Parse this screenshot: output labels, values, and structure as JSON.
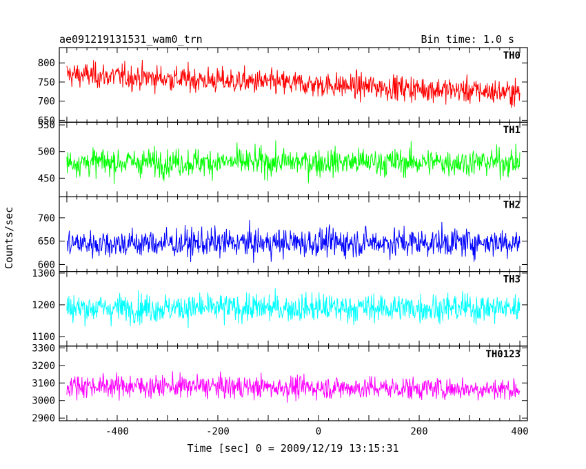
{
  "figure": {
    "title_left": "ae091219131531_wam0_trn",
    "title_right": "Bin time: 1.0 s",
    "ylabel": "Counts/sec",
    "xlabel": "Time [sec] 0 = 2009/12/19 13:15:31"
  },
  "chart_data": {
    "type": "line",
    "x": {
      "range": [
        -500,
        400
      ],
      "lim": [
        -515,
        415
      ],
      "bin": 1.0,
      "ticks": [
        -400,
        -200,
        0,
        200,
        400
      ]
    },
    "xlabel": "Time [sec] 0 = 2009/12/19 13:15:31",
    "ylabel": "Counts/sec",
    "panels": [
      {
        "name": "TH0",
        "color": "#ff0000",
        "ylim": [
          645,
          840
        ],
        "ticks": [
          650,
          700,
          750,
          800
        ],
        "mean_start": 770,
        "mean_end": 722,
        "noise": 28
      },
      {
        "name": "TH1",
        "color": "#00ff00",
        "ylim": [
          415,
          555
        ],
        "ticks": [
          450,
          500,
          550
        ],
        "mean_start": 480,
        "mean_end": 480,
        "noise": 22
      },
      {
        "name": "TH2",
        "color": "#0000ff",
        "ylim": [
          585,
          745
        ],
        "ticks": [
          600,
          650,
          700
        ],
        "mean_start": 645,
        "mean_end": 648,
        "noise": 26
      },
      {
        "name": "TH3",
        "color": "#00ffff",
        "ylim": [
          1070,
          1305
        ],
        "ticks": [
          1100,
          1200,
          1300
        ],
        "mean_start": 1190,
        "mean_end": 1190,
        "noise": 38
      },
      {
        "name": "TH0123",
        "color": "#ff00ff",
        "ylim": [
          2885,
          3310
        ],
        "ticks": [
          2900,
          3000,
          3100,
          3200,
          3300
        ],
        "mean_start": 3085,
        "mean_end": 3065,
        "noise": 55
      }
    ]
  }
}
